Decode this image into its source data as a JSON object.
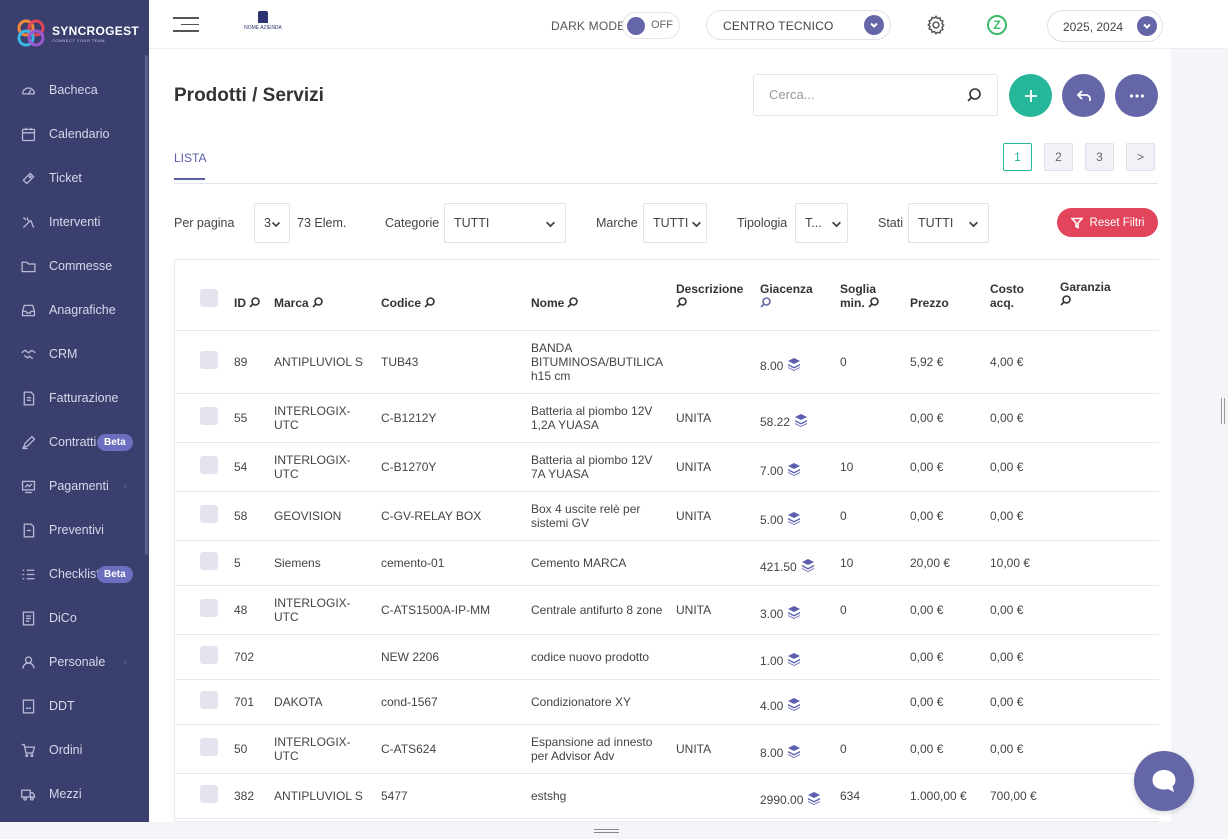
{
  "brand": {
    "name": "SYNCROGEST",
    "tagline": "CONNECT YOUR TEAM"
  },
  "sidebar": {
    "items": [
      {
        "label": "Bacheca",
        "icon": "dashboard-icon"
      },
      {
        "label": "Calendario",
        "icon": "calendar-icon"
      },
      {
        "label": "Ticket",
        "icon": "ticket-icon"
      },
      {
        "label": "Interventi",
        "icon": "tools-icon"
      },
      {
        "label": "Commesse",
        "icon": "folder-icon"
      },
      {
        "label": "Anagrafiche",
        "icon": "inbox-icon"
      },
      {
        "label": "CRM",
        "icon": "handshake-icon"
      },
      {
        "label": "Fatturazione",
        "icon": "invoice-icon"
      },
      {
        "label": "Contratti",
        "icon": "pen-icon",
        "badge": "Beta"
      },
      {
        "label": "Pagamenti",
        "icon": "payment-icon"
      },
      {
        "label": "Preventivi",
        "icon": "quote-icon"
      },
      {
        "label": "Checklist",
        "icon": "checklist-icon",
        "badge": "Beta"
      },
      {
        "label": "DiCo",
        "icon": "document-icon"
      },
      {
        "label": "Personale",
        "icon": "user-icon"
      },
      {
        "label": "DDT",
        "icon": "pdf-icon"
      },
      {
        "label": "Ordini",
        "icon": "cart-icon"
      },
      {
        "label": "Mezzi",
        "icon": "truck-icon"
      }
    ]
  },
  "topbar": {
    "company_logo_text": "NOME AZIENDA",
    "dark_mode_label": "DARK MODE",
    "dark_mode_state": "OFF",
    "center_select": "CENTRO TECNICO",
    "z_label": "Z",
    "years": "2025, 2024"
  },
  "page": {
    "title": "Prodotti / Servizi",
    "search_placeholder": "Cerca...",
    "tab": "LISTA",
    "pages": [
      "1",
      "2",
      "3",
      ">"
    ]
  },
  "filters": {
    "per_page_label": "Per pagina",
    "per_page_value": "3",
    "elem_count": "73 Elem.",
    "categorie_label": "Categorie",
    "categorie_value": "TUTTI",
    "marche_label": "Marche",
    "marche_value": "TUTTI",
    "tipologia_label": "Tipologia",
    "tipologia_value": "T...",
    "stati_label": "Stati",
    "stati_value": "TUTTI",
    "reset_label": "Reset Filtri"
  },
  "table": {
    "headers": {
      "id": "ID",
      "marca": "Marca",
      "codice": "Codice",
      "nome": "Nome",
      "descrizione": "Descrizione",
      "giacenza": "Giacenza",
      "soglia_1": "Soglia",
      "soglia_2": "min.",
      "prezzo": "Prezzo",
      "costo_1": "Costo",
      "costo_2": "acq.",
      "garanzia": "Garanzia"
    },
    "rows": [
      {
        "id": "89",
        "marca": "ANTIPLUVIOL S",
        "codice": "TUB43",
        "nome": "BANDA BITUMINOSA/BUTILICA h15 cm",
        "descrizione": "",
        "giacenza": "8.00",
        "soglia": "0",
        "prezzo": "5,92 €",
        "costo": "4,00 €",
        "garanzia": ""
      },
      {
        "id": "55",
        "marca": "INTERLOGIX-UTC",
        "codice": "C-B1212Y",
        "nome": "Batteria al piombo 12V 1,2A YUASA",
        "descrizione": "UNITA",
        "giacenza": "58.22",
        "soglia": "",
        "prezzo": "0,00 €",
        "costo": "0,00 €",
        "garanzia": ""
      },
      {
        "id": "54",
        "marca": "INTERLOGIX-UTC",
        "codice": "C-B1270Y",
        "nome": "Batteria al piombo 12V 7A YUASA",
        "descrizione": "UNITA",
        "giacenza": "7.00",
        "soglia": "10",
        "prezzo": "0,00 €",
        "costo": "0,00 €",
        "garanzia": ""
      },
      {
        "id": "58",
        "marca": "GEOVISION",
        "codice": "C-GV-RELAY BOX",
        "nome": "Box 4 uscite relè per sistemi GV",
        "descrizione": "UNITA",
        "giacenza": "5.00",
        "soglia": "0",
        "prezzo": "0,00 €",
        "costo": "0,00 €",
        "garanzia": ""
      },
      {
        "id": "5",
        "marca": "Siemens",
        "codice": "cemento-01",
        "nome": "Cemento MARCA",
        "descrizione": "",
        "giacenza": "421.50",
        "soglia": "10",
        "prezzo": "20,00 €",
        "costo": "10,00 €",
        "garanzia": ""
      },
      {
        "id": "48",
        "marca": "INTERLOGIX-UTC",
        "codice": "C-ATS1500A-IP-MM",
        "nome": "Centrale antifurto 8 zone",
        "descrizione": "UNITA",
        "giacenza": "3.00",
        "soglia": "0",
        "prezzo": "0,00 €",
        "costo": "0,00 €",
        "garanzia": ""
      },
      {
        "id": "702",
        "marca": "",
        "codice": "NEW 2206",
        "nome": "codice nuovo prodotto",
        "descrizione": "",
        "giacenza": "1.00",
        "soglia": "",
        "prezzo": "0,00 €",
        "costo": "0,00 €",
        "garanzia": ""
      },
      {
        "id": "701",
        "marca": "DAKOTA",
        "codice": "cond-1567",
        "nome": "Condizionatore XY",
        "descrizione": "",
        "giacenza": "4.00",
        "soglia": "",
        "prezzo": "0,00 €",
        "costo": "0,00 €",
        "garanzia": ""
      },
      {
        "id": "50",
        "marca": "INTERLOGIX-UTC",
        "codice": "C-ATS624",
        "nome": "Espansione ad innesto per Advisor Adv",
        "descrizione": "UNITA",
        "giacenza": "8.00",
        "soglia": "0",
        "prezzo": "0,00 €",
        "costo": "0,00 €",
        "garanzia": ""
      },
      {
        "id": "382",
        "marca": "ANTIPLUVIOL S",
        "codice": "5477",
        "nome": "estshg",
        "descrizione": "",
        "giacenza": "2990.00",
        "soglia": "634",
        "prezzo": "1.000,00 €",
        "costo": "700,00 €",
        "garanzia": ""
      }
    ]
  },
  "colors": {
    "sidebar": "#3a3f6e",
    "accent": "#6466a8",
    "teal": "#26b79a",
    "danger": "#e2445c"
  }
}
